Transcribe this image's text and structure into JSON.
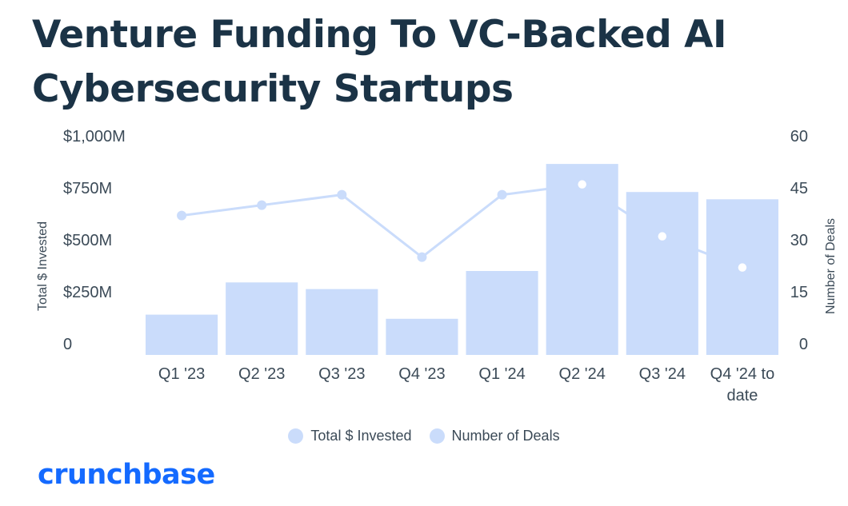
{
  "title": "Venture Funding To VC-Backed AI Cybersecurity Startups",
  "logo": "crunchbase",
  "colors": {
    "bar": "#cadcfb",
    "line": "#cadcfb",
    "marker_fill": "#cadcfb",
    "marker_highlight_fill": "#ffffff",
    "title": "#1b3346",
    "text": "#3b4a57",
    "logo": "#146aff"
  },
  "legend": {
    "placement": "bottom-center",
    "items": [
      {
        "label": "Total $ Invested"
      },
      {
        "label": "Number of Deals"
      }
    ]
  },
  "chart_data": {
    "type": "bar",
    "title": "Venture Funding To VC-Backed AI Cybersecurity Startups",
    "categories": [
      "Q1 '23",
      "Q2 '23",
      "Q3 '23",
      "Q4 '23",
      "Q1 '24",
      "Q2 '24",
      "Q3 '24",
      "Q4 '24 to date"
    ],
    "ylabel": "Total $ Invested",
    "y2label": "Number of Deals",
    "ylim": [
      0,
      1000
    ],
    "y2lim": [
      0,
      60
    ],
    "yticks": [
      0,
      250,
      500,
      750,
      1000
    ],
    "ytick_labels": [
      "0",
      "$250M",
      "$500M",
      "$750M",
      "$1,000M"
    ],
    "y2ticks": [
      0,
      15,
      30,
      45,
      60
    ],
    "y2tick_labels": [
      "0",
      "15",
      "30",
      "45",
      "60"
    ],
    "grid": false,
    "series": [
      {
        "name": "Total $ Invested",
        "type": "bar",
        "axis": "left",
        "values": [
          140,
          295,
          263,
          120,
          350,
          865,
          730,
          695
        ]
      },
      {
        "name": "Number of Deals",
        "type": "line",
        "axis": "right",
        "values": [
          37,
          40,
          43,
          25,
          43,
          46,
          31,
          22
        ]
      }
    ]
  }
}
